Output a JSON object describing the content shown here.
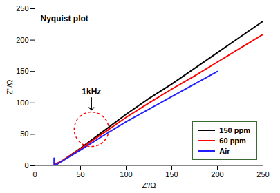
{
  "chart_data": {
    "type": "line",
    "title": "Nyquist plot",
    "x_label": "Z'/Ω",
    "y_label": "Z\"/Ω",
    "xlim": [
      0,
      250
    ],
    "xticks": [
      0,
      50,
      100,
      150,
      200,
      250
    ],
    "ylim": [
      0,
      250
    ],
    "yticks": [
      0,
      50,
      100,
      150,
      200,
      250
    ],
    "grid": false,
    "legend": "lower right",
    "series": [
      {
        "name": "150 ppm",
        "color": "#000000",
        "x": [
          22,
          30,
          50,
          75,
          100,
          125,
          150,
          175,
          200,
          225,
          250
        ],
        "values": [
          2,
          8,
          28,
          55,
          82,
          107,
          130,
          155,
          180,
          205,
          230
        ]
      },
      {
        "name": "60 ppm",
        "color": "#ff0000",
        "x": [
          22,
          30,
          50,
          75,
          100,
          125,
          150,
          175,
          200,
          225,
          250
        ],
        "values": [
          2,
          8,
          27,
          52,
          77,
          100,
          122,
          143,
          165,
          187,
          209
        ]
      },
      {
        "name": "Air",
        "color": "#1f1fff",
        "x": [
          21,
          21,
          25,
          50,
          75,
          100,
          125,
          150,
          175,
          200
        ],
        "values": [
          12,
          0,
          3,
          25,
          48,
          70,
          90,
          110,
          130,
          150
        ]
      }
    ],
    "annotations": [
      {
        "text": "1kHz",
        "x": 62,
        "y": 58,
        "color": "#ff0000"
      }
    ]
  }
}
